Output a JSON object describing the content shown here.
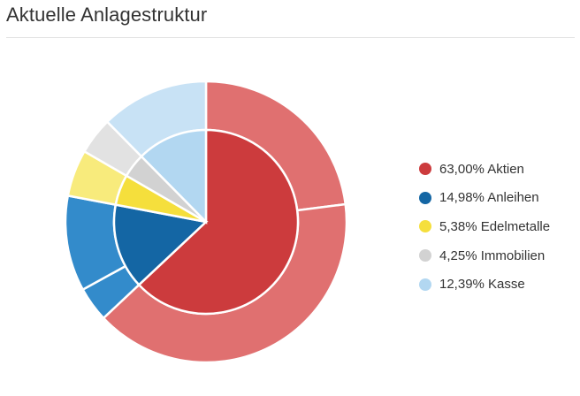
{
  "page": {
    "title": "Aktuelle Anlagestruktur"
  },
  "chart_data": {
    "type": "pie",
    "title": "Aktuelle Anlagestruktur",
    "series": [
      {
        "name": "Aktien",
        "value": 63.0,
        "label": "63,00% Aktien",
        "color": "#cc3b3d",
        "outer_color": "#e07070",
        "outer_split": [
          23.0,
          40.0
        ]
      },
      {
        "name": "Anleihen",
        "value": 14.98,
        "label": "14,98% Anleihen",
        "color": "#1466a4",
        "outer_color": "#338bcb",
        "outer_split": [
          4.0,
          10.98
        ]
      },
      {
        "name": "Edelmetalle",
        "value": 5.38,
        "label": "5,38% Edelmetalle",
        "color": "#f5df3c",
        "outer_color": "#f8eb7c",
        "outer_split": [
          5.38
        ]
      },
      {
        "name": "Immobilien",
        "value": 4.25,
        "label": "4,25% Immobilien",
        "color": "#d2d2d2",
        "outer_color": "#e2e2e2",
        "outer_split": [
          4.25
        ]
      },
      {
        "name": "Kasse",
        "value": 12.39,
        "label": "12,39% Kasse",
        "color": "#b2d7f1",
        "outer_color": "#c8e2f5",
        "outer_split": [
          12.39
        ]
      }
    ]
  }
}
